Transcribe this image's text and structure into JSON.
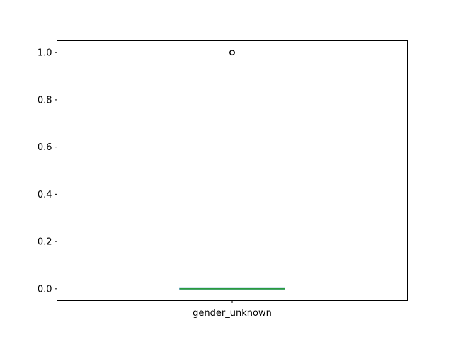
{
  "chart_data": {
    "type": "box",
    "title": "",
    "xlabel": "",
    "ylabel": "",
    "categories": [
      "gender_unknown"
    ],
    "boxes": [
      {
        "name": "gender_unknown",
        "whisker_low": 0.0,
        "q1": 0.0,
        "median": 0.0,
        "q3": 0.0,
        "whisker_high": 0.0,
        "outliers": [
          1.0
        ]
      }
    ],
    "ylim": [
      -0.05,
      1.05
    ],
    "yticks": [
      0.0,
      0.2,
      0.4,
      0.6,
      0.8,
      1.0
    ],
    "ytick_labels": [
      "0.0",
      "0.2",
      "0.4",
      "0.6",
      "0.8",
      "1.0"
    ],
    "grid": false,
    "colors": {
      "box": "#1f77b4",
      "median": "#2ca02c",
      "whisker": "#000000",
      "outlier_edge": "#000000",
      "axes": "#000000"
    }
  }
}
